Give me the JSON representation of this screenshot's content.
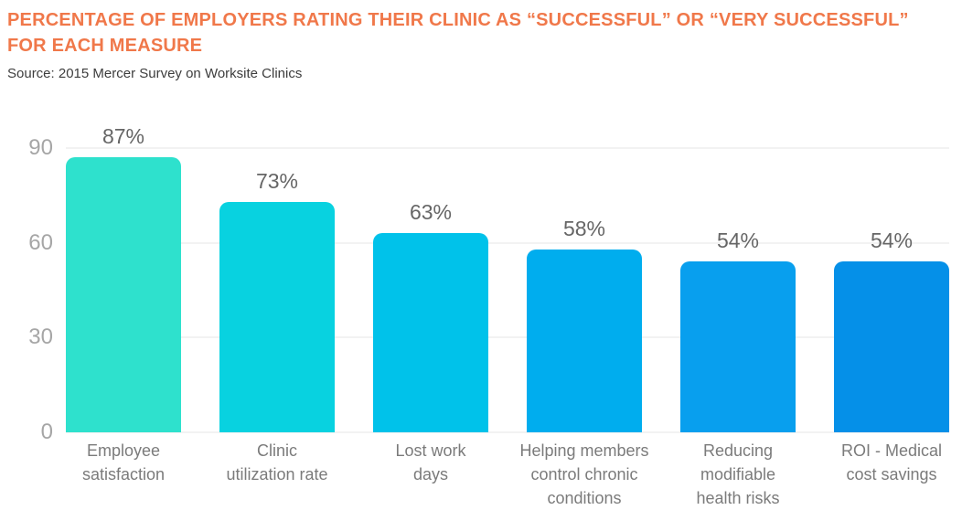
{
  "header": {
    "title_lines": [
      "PERCENTAGE OF EMPLOYERS RATING THEIR CLINIC AS “SUCCESSFUL” OR “VERY SUCCESSFUL”",
      "FOR EACH MEASURE"
    ],
    "title_color": "#f0784a",
    "source": "Source: 2015 Mercer Survey on Worksite Clinics",
    "source_color": "#3d3d3d"
  },
  "chart_data": {
    "type": "bar",
    "title": "Percentage of employers rating their clinic as “successful” or “very successful” for each measure",
    "source": "2015 Mercer Survey on Worksite Clinics",
    "categories": [
      "Employee satisfaction",
      "Clinic utilization rate",
      "Lost work days",
      "Helping members control chronic conditions",
      "Reducing modifiable health risks",
      "ROI - Medical cost savings"
    ],
    "category_lines": [
      [
        "Employee",
        "satisfaction"
      ],
      [
        "Clinic",
        "utilization rate"
      ],
      [
        "Lost work",
        "days"
      ],
      [
        "Helping members",
        "control chronic",
        "conditions"
      ],
      [
        "Reducing",
        "modifiable",
        "health risks"
      ],
      [
        "ROI - Medical",
        "cost savings"
      ]
    ],
    "values": [
      87,
      73,
      63,
      58,
      54,
      54
    ],
    "value_labels": [
      "87%",
      "73%",
      "63%",
      "58%",
      "54%",
      "54%"
    ],
    "bar_colors": [
      "#2ee1cd",
      "#08d2e0",
      "#00c2ea",
      "#00adee",
      "#089fee",
      "#0590e8"
    ],
    "y_ticks": [
      90,
      60,
      30,
      0
    ],
    "ylim": [
      0,
      90
    ],
    "grid": true,
    "legend": false,
    "xlabel": "",
    "ylabel": ""
  },
  "style": {
    "grid_color": "#e4e4e4",
    "tick_label_color": "#a6a6a6",
    "value_label_color": "#666666",
    "category_label_color": "#7b7b7b"
  }
}
